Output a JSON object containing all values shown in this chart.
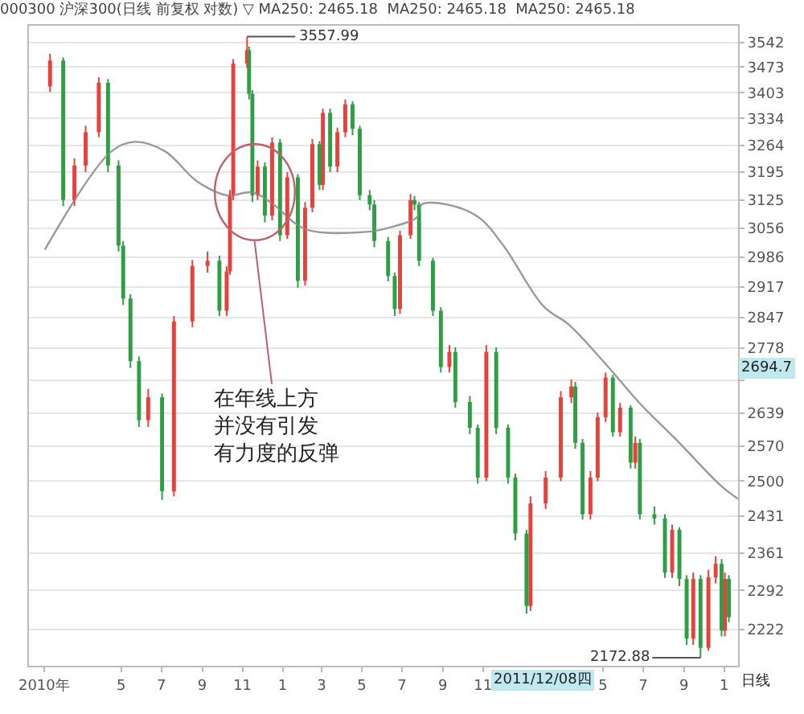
{
  "chart_data": {
    "type": "candlestick",
    "title": "000300 沪深300(日线 前复权 对数) ▽ MA250: 2465.18  MA250: 2465.18  MA250: 2465.18",
    "log": "y",
    "grid": "y",
    "ylim": [
      2159,
      3589
    ],
    "yticks": [
      2222,
      2292,
      2361,
      2431,
      2500,
      2570,
      2639,
      {
        "value": 2708,
        "label": null
      },
      2778,
      2847,
      2917,
      2986,
      3056,
      3125,
      3195,
      3264,
      3334,
      3403,
      3473,
      3542
    ],
    "xlim": [
      "2009-12-12",
      "2012-11-22"
    ],
    "xticks": [
      {
        "value": "2010-01-04",
        "label": "2010年"
      },
      {
        "value": "2010-05-01",
        "label": "5"
      },
      {
        "value": "2010-07-01",
        "label": "7"
      },
      {
        "value": "2010-09-01",
        "label": "9"
      },
      {
        "value": "2010-11-01",
        "label": "11"
      },
      {
        "value": "2011-01-01",
        "label": "1"
      },
      {
        "value": "2011-03-01",
        "label": "3"
      },
      {
        "value": "2011-05-01",
        "label": "5"
      },
      {
        "value": "2011-07-01",
        "label": "7"
      },
      {
        "value": "2011-09-01",
        "label": "9"
      },
      {
        "value": "2011-11-01",
        "label": "11"
      },
      {
        "value": "2012-05-01",
        "label": "5"
      },
      {
        "value": "2012-07-01",
        "label": "7"
      },
      {
        "value": "2012-09-01",
        "label": "9"
      },
      {
        "value": "2012-11-01",
        "label": "1"
      }
    ],
    "x": [
      "2010-01-13",
      "2010-02-02",
      "2010-02-19",
      "2010-03-08",
      "2010-03-28",
      "2010-04-11",
      "2010-04-27",
      "2010-05-04",
      "2010-05-15",
      "2010-05-28",
      "2010-06-11",
      "2010-07-02",
      "2010-07-20",
      "2010-08-17",
      "2010-09-09",
      "2010-09-27",
      "2010-10-08",
      "2010-10-13",
      "2010-10-18",
      "2010-11-08",
      "2010-11-11",
      "2010-11-16",
      "2010-11-24",
      "2010-12-05",
      "2010-12-16",
      "2010-12-28",
      "2011-01-08",
      "2011-01-24",
      "2011-02-04",
      "2011-02-15",
      "2011-02-26",
      "2011-03-03",
      "2011-03-14",
      "2011-03-25",
      "2011-04-06",
      "2011-04-17",
      "2011-04-28",
      "2011-05-13",
      "2011-05-20",
      "2011-06-10",
      "2011-06-20",
      "2011-06-28",
      "2011-07-14",
      "2011-07-20",
      "2011-07-27",
      "2011-08-17",
      "2011-08-29",
      "2011-09-11",
      "2011-09-20",
      "2011-10-12",
      "2011-10-24",
      "2011-11-06",
      "2011-11-21",
      "2011-12-09",
      "2011-12-20",
      "2012-01-06",
      "2012-01-12",
      "2012-02-04",
      "2012-02-27",
      "2012-03-14",
      "2012-03-20",
      "2012-03-31",
      "2012-04-12",
      "2012-04-23",
      "2012-05-05",
      "2012-05-16",
      "2012-05-27",
      "2012-06-12",
      "2012-06-19",
      "2012-06-26",
      "2012-07-18",
      "2012-08-03",
      "2012-08-14",
      "2012-08-25",
      "2012-09-05",
      "2012-09-15",
      "2012-09-26",
      "2012-10-08",
      "2012-10-19",
      "2012-10-28",
      "2012-11-02",
      "2012-11-08"
    ],
    "ohlc": [
      [
        3420,
        3510,
        3405,
        3491
      ],
      [
        3491,
        3500,
        3110,
        3125
      ],
      [
        3125,
        3230,
        3110,
        3212
      ],
      [
        3212,
        3315,
        3195,
        3298
      ],
      [
        3298,
        3445,
        3285,
        3430
      ],
      [
        3430,
        3440,
        3195,
        3212
      ],
      [
        3212,
        3225,
        3000,
        3014
      ],
      [
        3014,
        3025,
        2875,
        2890
      ],
      [
        2890,
        2900,
        2735,
        2750
      ],
      [
        2750,
        2760,
        2610,
        2624
      ],
      [
        2624,
        2690,
        2610,
        2672
      ],
      [
        2672,
        2680,
        2463,
        2480
      ],
      [
        2480,
        2850,
        2470,
        2838
      ],
      [
        2838,
        2980,
        2825,
        2966
      ],
      [
        2966,
        3000,
        2950,
        2978
      ],
      [
        2978,
        2990,
        2850,
        2862
      ],
      [
        2862,
        2965,
        2850,
        2953
      ],
      [
        2953,
        3150,
        2945,
        3137
      ],
      [
        3137,
        3495,
        3125,
        3483
      ],
      [
        3483,
        3557.99,
        3470,
        3520
      ],
      [
        3520,
        3530,
        3385,
        3400
      ],
      [
        3400,
        3410,
        3120,
        3137
      ],
      [
        3137,
        3225,
        3125,
        3209
      ],
      [
        3209,
        3220,
        3070,
        3087
      ],
      [
        3087,
        3285,
        3075,
        3271
      ],
      [
        3271,
        3280,
        3025,
        3039
      ],
      [
        3039,
        3195,
        3030,
        3182
      ],
      [
        3182,
        3190,
        2915,
        2931
      ],
      [
        2931,
        3120,
        2920,
        3106
      ],
      [
        3106,
        3280,
        3095,
        3267
      ],
      [
        3267,
        3275,
        3150,
        3163
      ],
      [
        3163,
        3360,
        3150,
        3349
      ],
      [
        3349,
        3360,
        3195,
        3209
      ],
      [
        3209,
        3310,
        3195,
        3298
      ],
      [
        3298,
        3385,
        3285,
        3372
      ],
      [
        3372,
        3380,
        3290,
        3307
      ],
      [
        3307,
        3315,
        3125,
        3137
      ],
      [
        3137,
        3150,
        3100,
        3114
      ],
      [
        3114,
        3125,
        3010,
        3025
      ],
      [
        3025,
        3035,
        2930,
        2942
      ],
      [
        2942,
        2950,
        2850,
        2866
      ],
      [
        2866,
        3050,
        2855,
        3039
      ],
      [
        3039,
        3140,
        3030,
        3125
      ],
      [
        3125,
        3135,
        3100,
        3114
      ],
      [
        3114,
        3120,
        2965,
        2978
      ],
      [
        2978,
        2985,
        2850,
        2862
      ],
      [
        2862,
        2870,
        2725,
        2737
      ],
      [
        2737,
        2785,
        2725,
        2770
      ],
      [
        2770,
        2780,
        2650,
        2662
      ],
      [
        2662,
        2675,
        2595,
        2608
      ],
      [
        2608,
        2615,
        2495,
        2507
      ],
      [
        2507,
        2785,
        2500,
        2770
      ],
      [
        2770,
        2780,
        2595,
        2608
      ],
      [
        2608,
        2615,
        2495,
        2507
      ],
      [
        2507,
        2515,
        2385,
        2398
      ],
      [
        2398,
        2405,
        2250,
        2264
      ],
      [
        2264,
        2470,
        2255,
        2456
      ],
      [
        2456,
        2520,
        2445,
        2507
      ],
      [
        2507,
        2685,
        2500,
        2672
      ],
      [
        2672,
        2710,
        2660,
        2695
      ],
      [
        2695,
        2705,
        2565,
        2577
      ],
      [
        2577,
        2585,
        2425,
        2435
      ],
      [
        2435,
        2520,
        2425,
        2507
      ],
      [
        2507,
        2640,
        2500,
        2630
      ],
      [
        2630,
        2725,
        2620,
        2714
      ],
      [
        2714,
        2720,
        2590,
        2599
      ],
      [
        2599,
        2660,
        2590,
        2650
      ],
      [
        2650,
        2655,
        2525,
        2537
      ],
      [
        2537,
        2590,
        2525,
        2577
      ],
      [
        2577,
        2585,
        2425,
        2435
      ],
      [
        2435,
        2450,
        2415,
        2427
      ],
      [
        2427,
        2435,
        2315,
        2325
      ],
      [
        2325,
        2415,
        2315,
        2405
      ],
      [
        2405,
        2410,
        2300,
        2313
      ],
      [
        2313,
        2320,
        2195,
        2206
      ],
      [
        2206,
        2325,
        2195,
        2313
      ],
      [
        2313,
        2320,
        2172.88,
        2190
      ],
      [
        2190,
        2330,
        2185,
        2316
      ],
      [
        2316,
        2355,
        2305,
        2341
      ],
      [
        2341,
        2350,
        2210,
        2220
      ],
      [
        2220,
        2325,
        2210,
        2313
      ],
      [
        2313,
        2320,
        2235,
        2244
      ]
    ],
    "colors": [
      "#e8413c",
      "#2f9e44",
      "#e8413c",
      "#e8413c",
      "#e8413c",
      "#2f9e44",
      "#2f9e44",
      "#2f9e44",
      "#2f9e44",
      "#2f9e44",
      "#e8413c",
      "#2f9e44",
      "#e8413c",
      "#e8413c",
      "#e8413c",
      "#2f9e44",
      "#e8413c",
      "#e8413c",
      "#e8413c",
      "#e8413c",
      "#2f9e44",
      "#2f9e44",
      "#e8413c",
      "#2f9e44",
      "#e8413c",
      "#2f9e44",
      "#e8413c",
      "#2f9e44",
      "#e8413c",
      "#e8413c",
      "#2f9e44",
      "#e8413c",
      "#2f9e44",
      "#e8413c",
      "#e8413c",
      "#2f9e44",
      "#2f9e44",
      "#2f9e44",
      "#2f9e44",
      "#2f9e44",
      "#2f9e44",
      "#e8413c",
      "#e8413c",
      "#2f9e44",
      "#2f9e44",
      "#2f9e44",
      "#2f9e44",
      "#e8413c",
      "#2f9e44",
      "#2f9e44",
      "#2f9e44",
      "#e8413c",
      "#2f9e44",
      "#2f9e44",
      "#2f9e44",
      "#2f9e44",
      "#e8413c",
      "#e8413c",
      "#e8413c",
      "#e8413c",
      "#2f9e44",
      "#2f9e44",
      "#e8413c",
      "#e8413c",
      "#e8413c",
      "#2f9e44",
      "#e8413c",
      "#2f9e44",
      "#e8413c",
      "#2f9e44",
      "#2f9e44",
      "#2f9e44",
      "#e8413c",
      "#2f9e44",
      "#2f9e44",
      "#e8413c",
      "#2f9e44",
      "#e8413c",
      "#e8413c",
      "#2f9e44",
      "#e8413c",
      "#2f9e44"
    ],
    "series": [
      {
        "type": "line",
        "color": "#9a9a9a",
        "x": [
          "2010-01-05",
          "2010-04-16",
          "2010-05-22",
          "2010-07-07",
          "2010-08-23",
          "2010-10-08",
          "2010-11-17",
          "2010-12-18",
          "2011-02-04",
          "2011-05-08",
          "2011-06-13",
          "2011-07-24",
          "2011-07-31",
          "2011-09-07",
          "2011-10-25",
          "2011-12-02",
          "2012-02-01",
          "2012-03-10",
          "2012-05-03",
          "2012-06-26",
          "2012-08-25",
          "2012-10-26",
          "2012-11-22"
        ],
        "values": [
          3004,
          3248,
          3273,
          3248,
          3173,
          3137,
          3144,
          3114,
          3054,
          3047,
          3058,
          3083,
          3114,
          3114,
          3083,
          3014,
          2872,
          2831,
          2747,
          2659,
          2577,
          2492,
          2465
        ]
      }
    ],
    "annotations": [
      {
        "text": "3557.99",
        "x": "2010-11-08",
        "y": 3557.99
      },
      {
        "text": "2172.88",
        "x": "2012-09-26",
        "y": 2172.88
      },
      "在年线上方并没有引发有力度的反弹",
      "2694.7",
      "2011/12/08四",
      "日线"
    ]
  }
}
